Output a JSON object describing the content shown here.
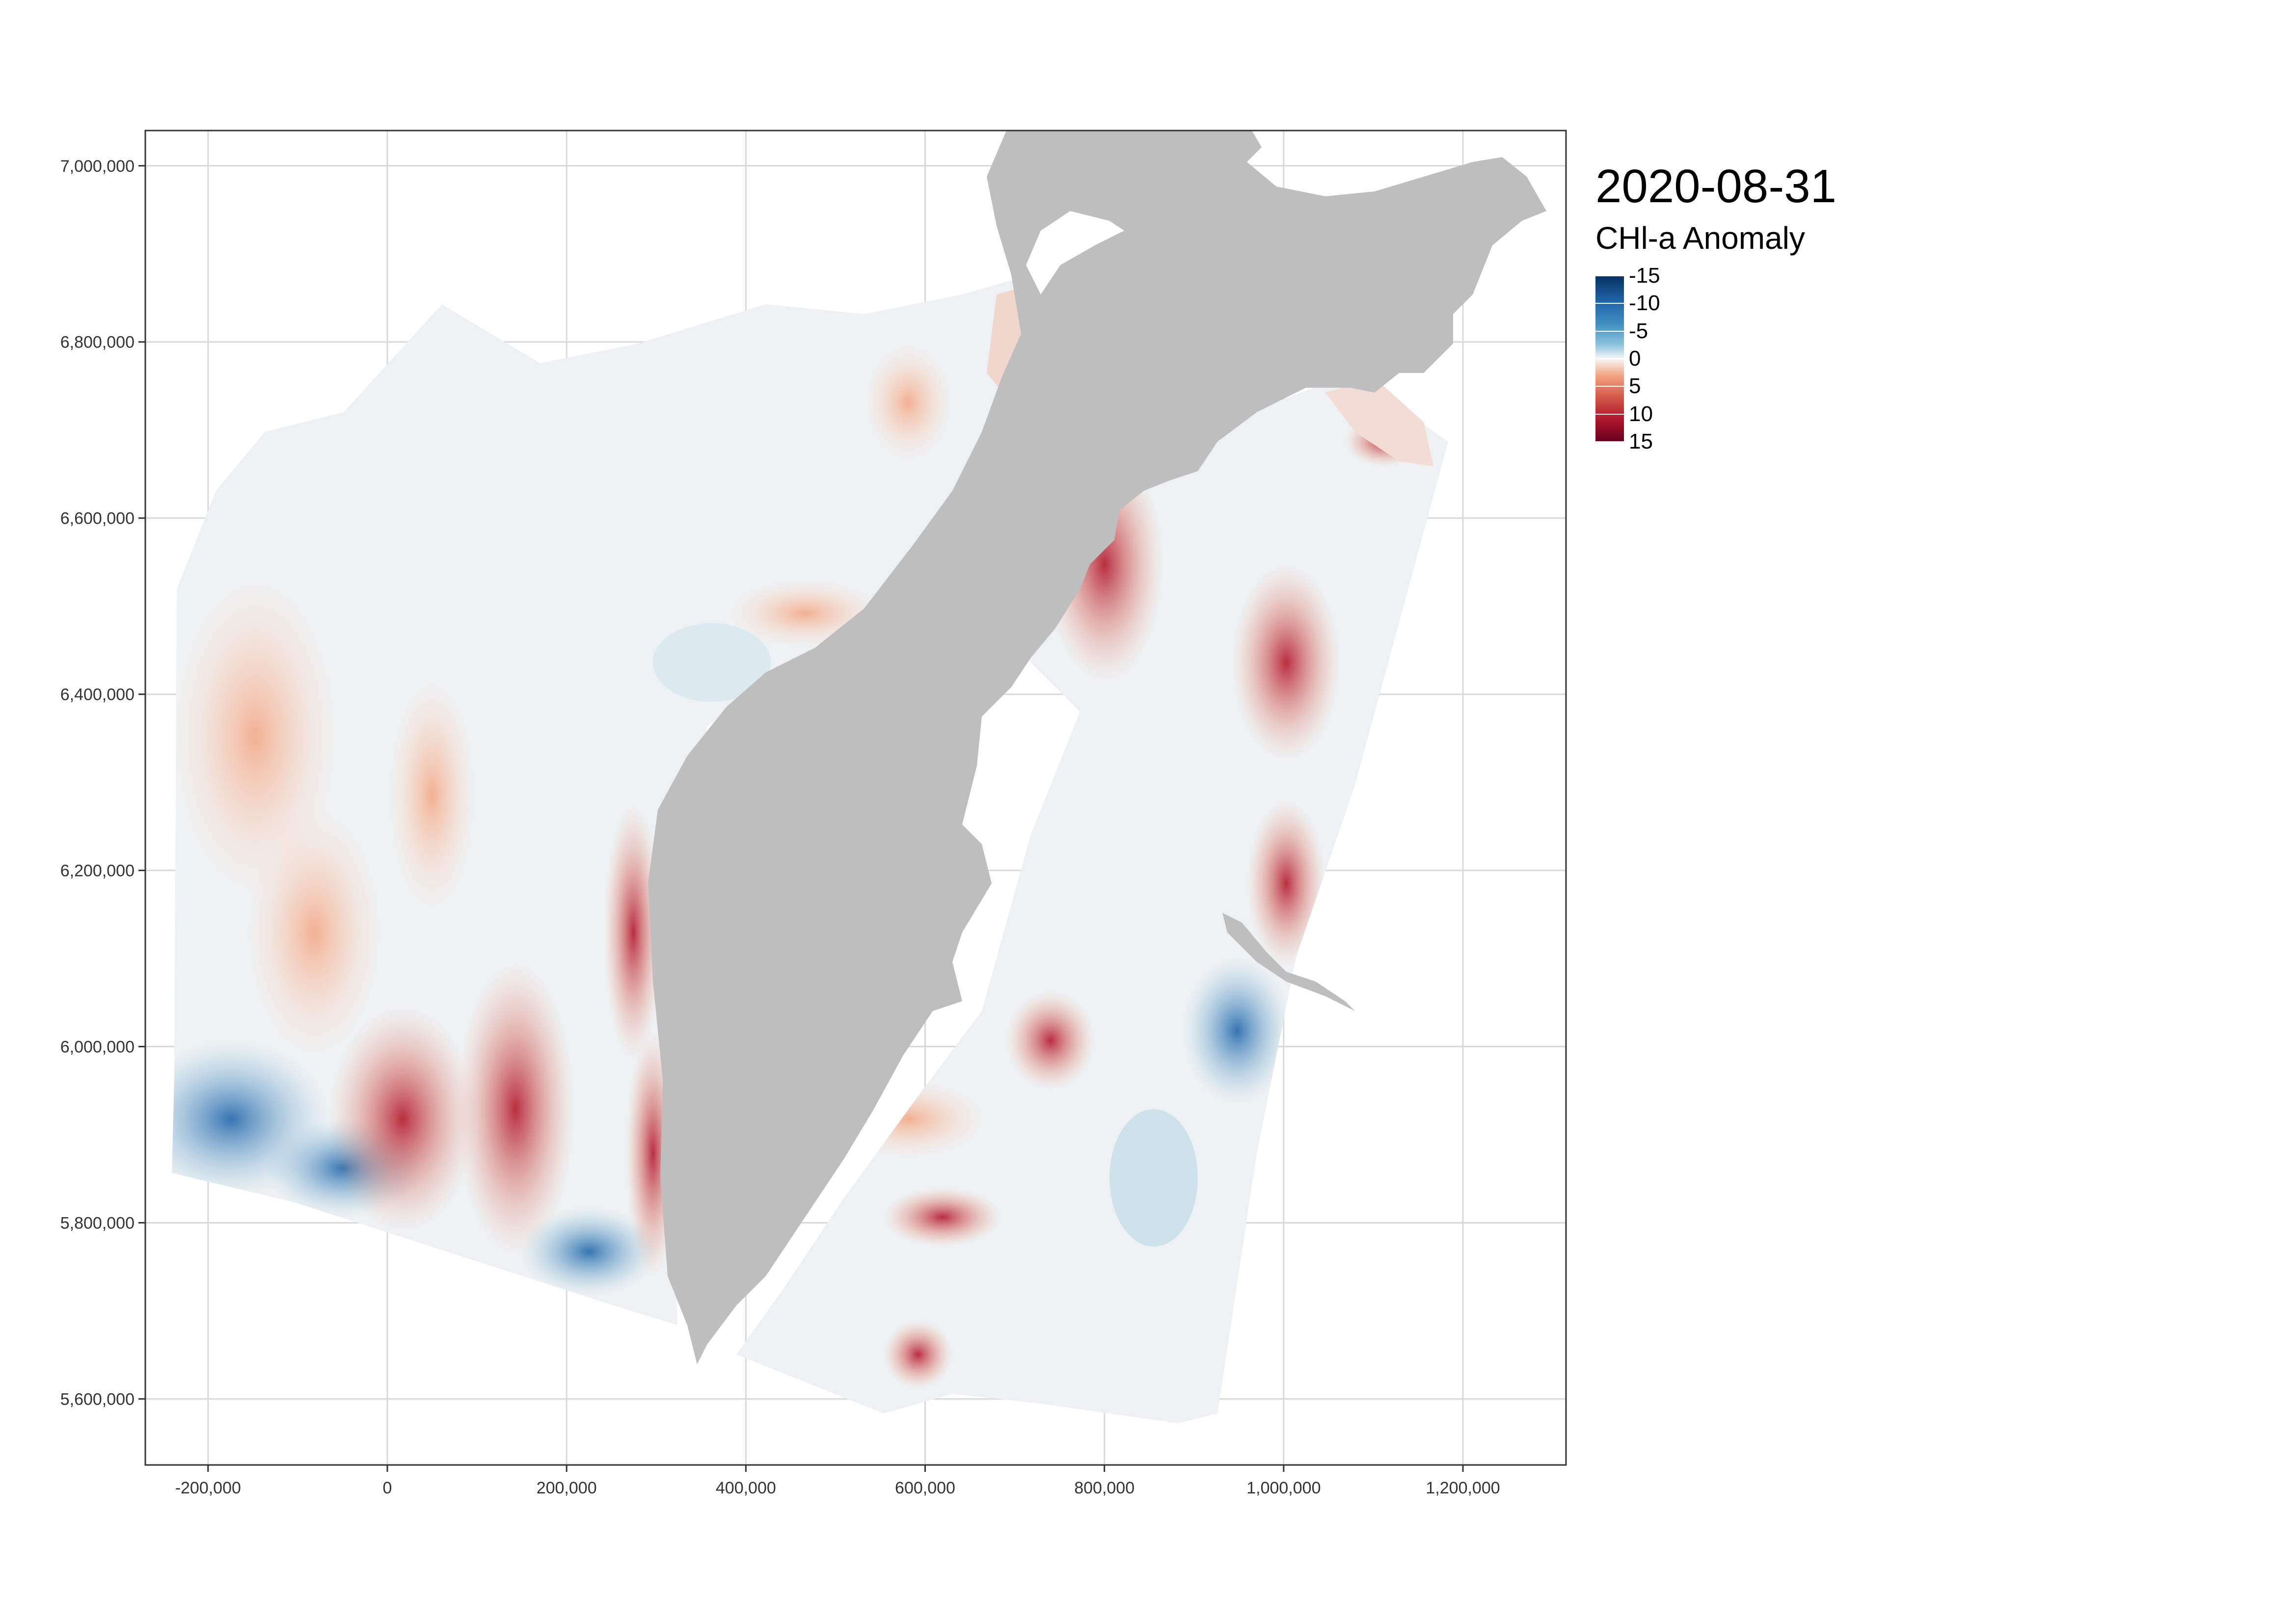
{
  "map": {
    "date": "2020-08-31",
    "projection": "projected (easting / northing)",
    "extent_x": [
      -270000,
      1315000
    ],
    "extent_y": [
      5525000,
      7040000
    ],
    "land_color": "#bebebe",
    "grid_color": "#d9d9d9",
    "panel_border_color": "#333333"
  },
  "axes": {
    "x": {
      "ticks": [
        -200000,
        0,
        200000,
        400000,
        600000,
        800000,
        1000000,
        1200000
      ],
      "tick_labels": [
        "-200,000",
        "0",
        "200,000",
        "400,000",
        "600,000",
        "800,000",
        "1,000,000",
        "1,200,000"
      ]
    },
    "y": {
      "ticks": [
        5600000,
        5800000,
        6000000,
        6200000,
        6400000,
        6600000,
        6800000,
        7000000
      ],
      "tick_labels": [
        "5,600,000",
        "5,800,000",
        "6,000,000",
        "6,200,000",
        "6,400,000",
        "6,600,000",
        "6,800,000",
        "7,000,000"
      ]
    }
  },
  "legend": {
    "title": "CHl-a Anomaly",
    "scale": "diverging",
    "range": [
      -15,
      15
    ],
    "ticks": [
      -15,
      -10,
      -5,
      0,
      5,
      10,
      15
    ],
    "tick_labels": [
      "-15",
      "-10",
      "-5",
      "0",
      "5",
      "10",
      "15"
    ],
    "colors": {
      "strong_negative": "#053061",
      "negative": "#2166ac",
      "weak_negative": "#92c5de",
      "zero": "#f7f7f7",
      "weak_positive": "#f4a582",
      "positive": "#d6604d",
      "strong_positive": "#67001f"
    }
  }
}
